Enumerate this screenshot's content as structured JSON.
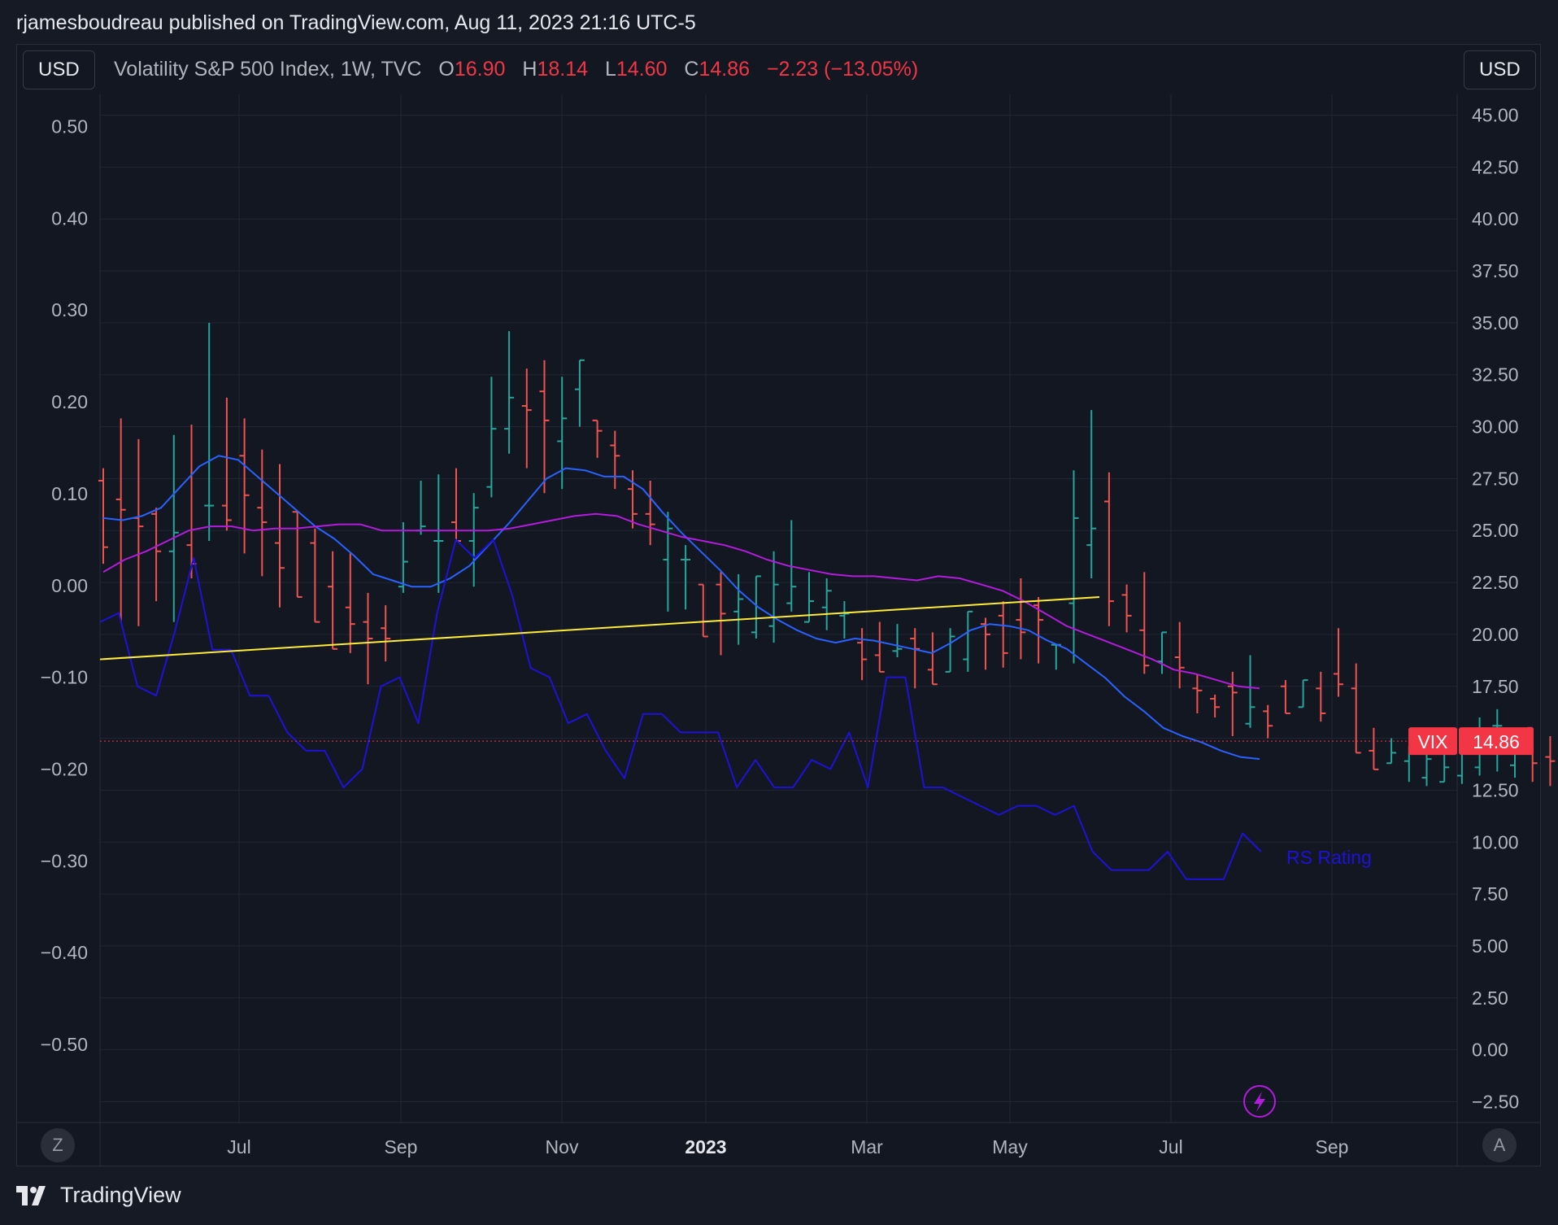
{
  "header": {
    "publisher_line": "rjamesboudreau published on TradingView.com, Aug 11, 2023 21:16 UTC-5"
  },
  "toolbar": {
    "left_currency": "USD",
    "right_currency": "USD",
    "left_corner": "Z",
    "right_corner": "A"
  },
  "legend": {
    "title": "Volatility S&P 500 Index, 1W, TVC",
    "open_label": "O",
    "open": "16.90",
    "high_label": "H",
    "high": "18.14",
    "low_label": "L",
    "low": "14.60",
    "close_label": "C",
    "close": "14.86",
    "change": "−2.23 (−13.05%)"
  },
  "price_tag": {
    "symbol": "VIX",
    "value": "14.86"
  },
  "footer": {
    "brand": "TradingView"
  },
  "colors": {
    "up": "#26a69a",
    "down": "#ef5350",
    "ma_fast": "#2962ff",
    "ma_slow": "#b31cdc",
    "rs": "#1e12d8",
    "trend": "#ffeb3b"
  },
  "chart_data": {
    "type": "line",
    "title": "Volatility S&P 500 Index, 1W, TVC",
    "x_ticks": [
      "Jul",
      "Sep",
      "Nov",
      "2023",
      "Mar",
      "May",
      "Jul",
      "Sep"
    ],
    "right_axis": {
      "label": "",
      "ticks": [
        "45.00",
        "42.50",
        "40.00",
        "37.50",
        "35.00",
        "32.50",
        "30.00",
        "27.50",
        "25.00",
        "22.50",
        "20.00",
        "17.50",
        "15.00",
        "12.50",
        "10.00",
        "7.50",
        "5.00",
        "2.50",
        "0.00",
        "−2.50"
      ],
      "ylim": [
        -3.5,
        46
      ]
    },
    "left_axis": {
      "label": "",
      "ticks": [
        "0.50",
        "0.40",
        "0.30",
        "0.20",
        "0.10",
        "0.00",
        "−0.10",
        "−0.20",
        "−0.30",
        "−0.40",
        "−0.50"
      ],
      "ylim": [
        -0.585,
        0.535
      ]
    },
    "last_price": 14.86,
    "ohlc_bars": [
      [
        27.4,
        28.0,
        23.4,
        24.2
      ],
      [
        26.5,
        30.4,
        20.6,
        26.0
      ],
      [
        25.6,
        29.4,
        20.4,
        25.2
      ],
      [
        25.8,
        26.1,
        21.6,
        24.0
      ],
      [
        24.0,
        29.6,
        20.6,
        24.9
      ],
      [
        24.3,
        30.1,
        22.7,
        23.4
      ],
      [
        26.2,
        35.0,
        24.5,
        26.2
      ],
      [
        26.2,
        31.4,
        25.0,
        25.5
      ],
      [
        28.6,
        30.4,
        23.9,
        26.7
      ],
      [
        26.1,
        28.9,
        22.8,
        25.4
      ],
      [
        24.4,
        28.2,
        21.3,
        23.2
      ],
      [
        25.9,
        25.8,
        22.1,
        21.8
      ],
      [
        24.4,
        25.1,
        22.0,
        20.6
      ],
      [
        22.3,
        24.0,
        19.5,
        19.3
      ],
      [
        21.3,
        23.9,
        19.1,
        20.5
      ],
      [
        20.6,
        22.0,
        17.6,
        19.8
      ],
      [
        20.3,
        21.4,
        18.7,
        19.8
      ],
      [
        22.3,
        25.4,
        22.0,
        23.5
      ],
      [
        25.0,
        27.4,
        24.8,
        25.2
      ],
      [
        24.5,
        27.7,
        22.0,
        24.5
      ],
      [
        25.4,
        28.0,
        24.7,
        24.5
      ],
      [
        24.5,
        26.8,
        22.3,
        26.1
      ],
      [
        27.1,
        32.4,
        26.6,
        29.9
      ],
      [
        29.9,
        34.6,
        28.7,
        31.4
      ],
      [
        31.0,
        32.8,
        28.0,
        30.8
      ],
      [
        31.7,
        33.2,
        26.8,
        30.3
      ],
      [
        29.3,
        32.4,
        27.0,
        30.4
      ],
      [
        31.8,
        31.7,
        30.0,
        33.2
      ],
      [
        30.3,
        30.3,
        28.5,
        29.8
      ],
      [
        29.1,
        29.8,
        27.0,
        28.6
      ],
      [
        27.0,
        27.9,
        25.1,
        25.8
      ],
      [
        25.8,
        27.4,
        24.3,
        25.3
      ],
      [
        23.6,
        25.9,
        21.1,
        25.1
      ],
      [
        23.6,
        24.3,
        21.2,
        23.6
      ],
      [
        22.4,
        22.3,
        20.6,
        19.9
      ],
      [
        22.4,
        23.0,
        19.0,
        21.0
      ],
      [
        21.1,
        22.9,
        19.5,
        21.7
      ],
      [
        20.1,
        22.1,
        19.8,
        22.8
      ],
      [
        20.4,
        24.0,
        19.6,
        22.4
      ],
      [
        21.5,
        25.5,
        21.1,
        22.3
      ],
      [
        20.6,
        23.0,
        20.9,
        21.6
      ],
      [
        21.3,
        22.7,
        20.2,
        22.1
      ],
      [
        20.9,
        21.6,
        19.8,
        21.0
      ],
      [
        19.6,
        20.3,
        17.8,
        18.8
      ],
      [
        19.0,
        20.6,
        18.2,
        18.2
      ],
      [
        19.2,
        20.5,
        18.9,
        19.3
      ],
      [
        19.8,
        20.3,
        17.4,
        19.3
      ],
      [
        18.3,
        20.1,
        17.9,
        17.6
      ],
      [
        18.2,
        20.3,
        18.2,
        19.9
      ],
      [
        18.8,
        20.4,
        18.2,
        21.1
      ],
      [
        20.5,
        20.8,
        18.3,
        20.0
      ],
      [
        20.9,
        21.6,
        18.4,
        19.1
      ],
      [
        20.7,
        22.7,
        18.8,
        20.1
      ],
      [
        21.4,
        21.8,
        18.6,
        20.7
      ],
      [
        19.5,
        18.6,
        18.3,
        19.5
      ],
      [
        21.5,
        27.9,
        18.6,
        25.6
      ],
      [
        24.3,
        30.8,
        22.7,
        25.1
      ],
      [
        26.4,
        27.8,
        20.4,
        21.6
      ],
      [
        21.9,
        22.4,
        20.1,
        20.9
      ],
      [
        20.2,
        23.0,
        18.1,
        18.5
      ],
      [
        18.7,
        20.0,
        18.1,
        20.1
      ],
      [
        18.9,
        20.6,
        17.4,
        18.4
      ],
      [
        17.4,
        18.1,
        16.2,
        17.3
      ],
      [
        16.9,
        17.1,
        16.0,
        16.5
      ],
      [
        17.5,
        18.2,
        15.1,
        17.2
      ],
      [
        15.7,
        19.0,
        15.5,
        16.5
      ],
      [
        16.3,
        16.6,
        15.0,
        15.6
      ],
      [
        17.5,
        17.8,
        16.8,
        16.2
      ],
      [
        16.5,
        17.8,
        16.8,
        17.8
      ],
      [
        17.4,
        18.2,
        15.8,
        16.2
      ],
      [
        18.1,
        20.3,
        17.0,
        17.6
      ],
      [
        17.4,
        18.6,
        14.9,
        14.3
      ],
      [
        14.4,
        15.5,
        13.8,
        13.5
      ],
      [
        13.8,
        15.0,
        14.9,
        14.3
      ],
      [
        13.9,
        14.4,
        12.9,
        14.6
      ],
      [
        13.1,
        14.8,
        12.7,
        14.0
      ],
      [
        12.9,
        14.5,
        12.9,
        13.6
      ],
      [
        13.2,
        13.6,
        12.8,
        14.3
      ],
      [
        13.6,
        16.0,
        13.2,
        14.8
      ],
      [
        15.6,
        16.4,
        13.4,
        15.6
      ],
      [
        13.7,
        14.1,
        13.1,
        14.9
      ],
      [
        15.5,
        14.9,
        12.9,
        13.8
      ],
      [
        14.1,
        15.1,
        12.7,
        13.9
      ],
      [
        13.4,
        14.8,
        12.5,
        13.8
      ],
      [
        14.1,
        17.3,
        13.2,
        16.9
      ],
      [
        16.9,
        18.1,
        14.6,
        14.9
      ]
    ],
    "series": [
      {
        "values": [
          25.6,
          25.5,
          25.7,
          26.1,
          27.1,
          28.1,
          28.6,
          28.4,
          27.6,
          26.8,
          26.0,
          25.2,
          24.6,
          23.8,
          22.9,
          22.6,
          22.3,
          22.3,
          22.7,
          23.3,
          24.3,
          25.3,
          26.4,
          27.5,
          28.0,
          27.9,
          27.6,
          27.6,
          27.0,
          25.9,
          24.9,
          24.0,
          23.1,
          22.1,
          21.3,
          20.7,
          20.2,
          19.8,
          19.6,
          19.8,
          19.7,
          19.5,
          19.3,
          19.1,
          19.6,
          20.2,
          20.5,
          20.4,
          20.2,
          19.7,
          19.3,
          18.6,
          17.9,
          17.0,
          16.3,
          15.5,
          15.1,
          14.8,
          14.4,
          14.1,
          14.0
        ]
      },
      {
        "values": [
          23.0,
          23.6,
          24.0,
          24.5,
          25.0,
          25.2,
          25.2,
          25.0,
          25.1,
          25.1,
          25.2,
          25.3,
          25.3,
          25.0,
          25.0,
          25.0,
          25.0,
          25.0,
          25.0,
          25.1,
          25.3,
          25.5,
          25.7,
          25.8,
          25.7,
          25.3,
          25.0,
          24.7,
          24.5,
          24.3,
          24.0,
          23.6,
          23.3,
          23.1,
          22.9,
          22.8,
          22.8,
          22.7,
          22.6,
          22.8,
          22.7,
          22.4,
          22.1,
          21.6,
          21.0,
          20.4,
          20.0,
          19.6,
          19.2,
          18.8,
          18.3,
          18.1,
          17.8,
          17.5,
          17.4
        ]
      },
      {
        "name": "RS Rating",
        "values": [
          -0.04,
          -0.03,
          -0.11,
          -0.12,
          -0.05,
          0.03,
          -0.07,
          -0.07,
          -0.12,
          -0.12,
          -0.16,
          -0.18,
          -0.18,
          -0.22,
          -0.2,
          -0.11,
          -0.1,
          -0.15,
          -0.03,
          0.05,
          0.03,
          0.05,
          -0.01,
          -0.09,
          -0.1,
          -0.15,
          -0.14,
          -0.18,
          -0.21,
          -0.14,
          -0.14,
          -0.16,
          -0.16,
          -0.16,
          -0.22,
          -0.19,
          -0.22,
          -0.22,
          -0.19,
          -0.2,
          -0.16,
          -0.22,
          -0.1,
          -0.1,
          -0.22,
          -0.22,
          -0.23,
          -0.24,
          -0.25,
          -0.24,
          -0.24,
          -0.25,
          -0.24,
          -0.29,
          -0.31,
          -0.31,
          -0.31,
          -0.29,
          -0.32,
          -0.32,
          -0.32,
          -0.27,
          -0.29
        ]
      },
      {
        "values": [
          18.8,
          21.8
        ]
      }
    ]
  }
}
